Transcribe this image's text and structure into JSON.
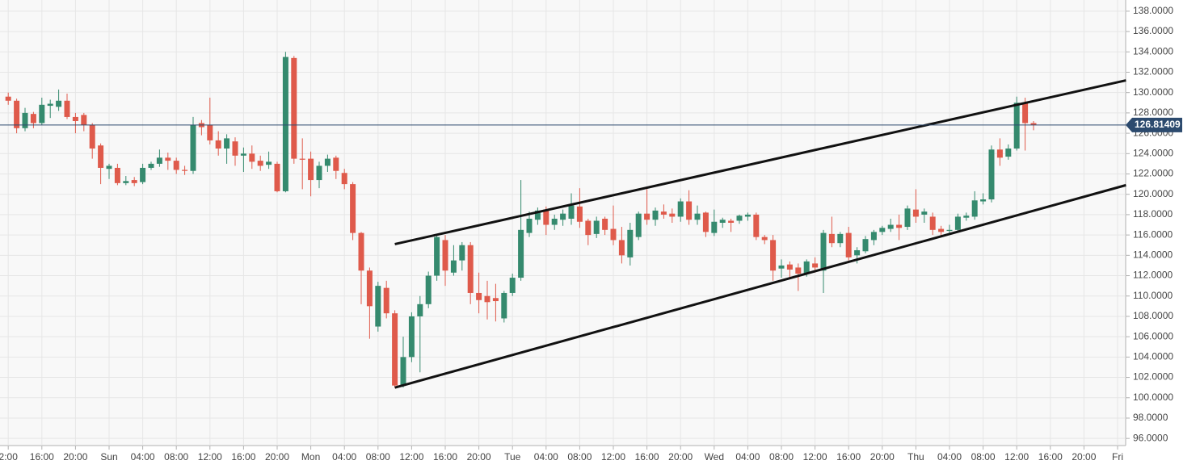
{
  "chart_data": {
    "type": "candlestick",
    "categories": [
      "2:00",
      null,
      null,
      null,
      "16:00",
      null,
      null,
      null,
      "20:00",
      null,
      null,
      null,
      "Sun",
      null,
      null,
      null,
      "04:00",
      null,
      null,
      null,
      "08:00",
      null,
      null,
      null,
      "12:00",
      null,
      null,
      null,
      "16:00",
      null,
      null,
      null,
      "20:00",
      null,
      null,
      null,
      "Mon",
      null,
      null,
      null,
      "04:00",
      null,
      null,
      null,
      "08:00",
      null,
      null,
      null,
      "12:00",
      null,
      null,
      null,
      "16:00",
      null,
      null,
      null,
      "20:00",
      null,
      null,
      null,
      "Tue",
      null,
      null,
      null,
      "04:00",
      null,
      null,
      null,
      "08:00",
      null,
      null,
      null,
      "12:00",
      null,
      null,
      null,
      "16:00",
      null,
      null,
      null,
      "20:00",
      null,
      null,
      null,
      "Wed",
      null,
      null,
      null,
      "04:00",
      null,
      null,
      null,
      "08:00",
      null,
      null,
      null,
      "12:00",
      null,
      null,
      null,
      "16:00",
      null,
      null,
      null,
      "20:00",
      null,
      null,
      null,
      "Thu",
      null,
      null,
      null,
      "04:00",
      null,
      null,
      null,
      "08:00",
      null,
      null,
      null,
      "12:00",
      null,
      null,
      null,
      "16:00",
      null,
      null,
      null,
      "20:00",
      null,
      null,
      null,
      "Fri"
    ],
    "open": [
      129.6,
      129.2,
      126.5,
      127.9,
      127,
      128.7,
      128.6,
      129.2,
      127.6,
      127.8,
      126.8,
      124.8,
      122.5,
      122.6,
      121.1,
      121.4,
      121.2,
      122.6,
      123,
      123.6,
      123.3,
      122.4,
      122.3,
      127,
      126.8,
      125.3,
      124.5,
      125.2,
      123.8,
      124,
      123.3,
      122.9,
      123,
      120.3,
      133.4,
      123.5,
      123.5,
      121.4,
      122.8,
      123.6,
      122.1,
      121,
      116.2,
      112.5,
      107,
      110.8,
      108.3,
      101.2,
      104,
      108,
      109.2,
      112,
      115.5,
      112.3,
      113.5,
      115,
      110.3,
      110,
      109.8,
      107.8,
      110.3,
      111.8,
      116.2,
      117.5,
      118.5,
      117,
      117.5,
      117.6,
      118.8,
      117.4,
      116.1,
      117.6,
      116.6,
      115.5,
      113.8,
      115.8,
      118.1,
      117.5,
      118.3,
      118.1,
      117.8,
      119.3,
      117.5,
      118.2,
      116.2,
      117.2,
      117.4,
      117.4,
      117.8,
      118,
      115.8,
      115.5,
      112.7,
      113.1,
      112.8,
      112.2,
      113.2,
      112.5,
      116.1,
      115.2,
      116.2,
      114,
      114.4,
      115.5,
      116.3,
      116.6,
      117,
      116.8,
      118.5,
      118,
      117.8,
      116.6,
      116.4,
      116.5,
      117.7,
      117.8,
      119.3,
      119.5,
      124.4,
      123.7,
      124.5,
      129,
      127.0,
      null,
      null,
      null,
      null,
      null,
      null,
      null,
      null,
      null,
      null
    ],
    "high": [
      130,
      129.4,
      128.5,
      128.1,
      129.5,
      129.3,
      130.3,
      129.9,
      128,
      128,
      127,
      125,
      123,
      123,
      121.8,
      121.7,
      123,
      123.2,
      124.4,
      124.1,
      123.6,
      122.8,
      127.6,
      127.3,
      129.5,
      126.2,
      125.9,
      125.6,
      124.6,
      124.8,
      123.8,
      124.2,
      123.2,
      134,
      133.6,
      125.5,
      124.2,
      123.2,
      123.9,
      123.8,
      122.5,
      121.2,
      116.3,
      112.8,
      111.4,
      111.5,
      108.6,
      106,
      108.4,
      110,
      112.4,
      116,
      116,
      115,
      115.3,
      115.3,
      112.3,
      111.5,
      111.2,
      110.5,
      112.2,
      121.4,
      118.3,
      118.7,
      118.8,
      118,
      118.5,
      120.1,
      120.6,
      117.6,
      117.8,
      117.8,
      118.9,
      116.8,
      117.2,
      118.3,
      120.5,
      118.7,
      119,
      118.6,
      119.6,
      120.4,
      118.9,
      118.3,
      118.5,
      117.7,
      117.6,
      118,
      118.2,
      118.2,
      116,
      116,
      113.6,
      113.4,
      113.2,
      113.6,
      113.8,
      116.5,
      117.8,
      116.3,
      116.8,
      114.8,
      115.9,
      116.5,
      116.9,
      117.6,
      118,
      118.9,
      120.5,
      118.6,
      118.2,
      116.9,
      117,
      118.1,
      118.2,
      120.3,
      120.1,
      124.8,
      125.5,
      124.9,
      129.6,
      129.5,
      127.2,
      null,
      null,
      null,
      null,
      null,
      null,
      null,
      null,
      null,
      null
    ],
    "low": [
      128.8,
      126.0,
      126.2,
      126.5,
      126.8,
      127.5,
      128.2,
      127.4,
      126.0,
      126.2,
      123.5,
      121.0,
      121.5,
      120.9,
      120.9,
      120.8,
      121.0,
      122.4,
      122.7,
      122.4,
      122.0,
      121.9,
      122.0,
      125.8,
      124.9,
      123.8,
      123.0,
      122.8,
      122.2,
      122.5,
      122.3,
      122.5,
      120.2,
      120.2,
      123.0,
      120.5,
      119.8,
      120.6,
      122.2,
      121.5,
      120.5,
      115.5,
      109.2,
      105.8,
      106.5,
      107.8,
      101.0,
      101.0,
      103.5,
      102.5,
      108.8,
      111.5,
      111.0,
      112.0,
      112.5,
      109.2,
      108.3,
      107.7,
      107.5,
      107.4,
      110,
      111.5,
      115.8,
      117.0,
      116.0,
      116.5,
      116.9,
      117.0,
      116.7,
      115.0,
      115.7,
      116.0,
      115.0,
      113.2,
      113.0,
      115.5,
      117,
      116.9,
      117.6,
      117.2,
      117.3,
      117.0,
      117.0,
      115.8,
      115.9,
      116.7,
      116.3,
      117.1,
      117.4,
      115.5,
      115.1,
      111.5,
      111.8,
      111.7,
      110.5,
      111.9,
      112.3,
      110.3,
      114.8,
      114.8,
      113.5,
      113.2,
      114.2,
      115,
      116,
      116.3,
      115.5,
      116.5,
      117.2,
      117.2,
      116.0,
      115.8,
      116,
      116.3,
      117.4,
      117.5,
      119,
      119.2,
      122.8,
      123.4,
      124.3,
      124.3,
      126.3,
      null,
      null,
      null,
      null,
      null,
      null,
      null,
      null,
      null,
      null
    ],
    "close": [
      129.2,
      126.5,
      128,
      127.0,
      128.8,
      128.9,
      129.2,
      127.6,
      127.2,
      126.8,
      124.5,
      122.6,
      122.8,
      121.1,
      121.3,
      121.1,
      122.6,
      123,
      123.6,
      123.3,
      122.4,
      122.3,
      126.8,
      126.6,
      125.3,
      124.5,
      125.5,
      123.8,
      124.0,
      123.2,
      122.8,
      123.2,
      120.3,
      133.5,
      123.5,
      123.4,
      121.4,
      122.8,
      123.5,
      122.3,
      121.0,
      116.2,
      112.5,
      109,
      111,
      108.3,
      101.2,
      104,
      108,
      109.2,
      112,
      115.8,
      112.5,
      113.5,
      115,
      110.3,
      109.6,
      109.4,
      109.5,
      110.3,
      111.8,
      116.5,
      117.6,
      118.4,
      117.0,
      117.6,
      118.1,
      118.9,
      117.3,
      116.0,
      117.4,
      116.5,
      115.5,
      114,
      116.5,
      118.1,
      117.5,
      118.4,
      118.0,
      117.8,
      119.3,
      117.5,
      118.1,
      116.3,
      117.3,
      117.5,
      117.2,
      117.9,
      118,
      115.8,
      115.5,
      112.5,
      113,
      112.6,
      112.2,
      113.4,
      112.8,
      116.2,
      115.2,
      116.1,
      113.8,
      114.5,
      115.6,
      116.3,
      116.7,
      117,
      116.7,
      118.6,
      117.8,
      118.3,
      116.5,
      116.3,
      116.5,
      117.8,
      117.9,
      119.4,
      119.5,
      124.4,
      123.6,
      124.5,
      129.0,
      127.0,
      126.8,
      null,
      null,
      null,
      null,
      null,
      null,
      null,
      null,
      null,
      null
    ],
    "up_color": "#358a6e",
    "down_color": "#df5a4b",
    "ylim": [
      95.3,
      139.1
    ],
    "yticks": [
      {
        "value": 96,
        "label": "96.0000"
      },
      {
        "value": 98,
        "label": "98.0000"
      },
      {
        "value": 100,
        "label": "100.0000"
      },
      {
        "value": 102,
        "label": "102.0000"
      },
      {
        "value": 104,
        "label": "104.0000"
      },
      {
        "value": 106,
        "label": "106.0000"
      },
      {
        "value": 108,
        "label": "108.0000"
      },
      {
        "value": 110,
        "label": "110.0000"
      },
      {
        "value": 112,
        "label": "112.0000"
      },
      {
        "value": 114,
        "label": "114.0000"
      },
      {
        "value": 116,
        "label": "116.0000"
      },
      {
        "value": 118,
        "label": "118.0000"
      },
      {
        "value": 120,
        "label": "120.0000"
      },
      {
        "value": 122,
        "label": "122.0000"
      },
      {
        "value": 124,
        "label": "124.0000"
      },
      {
        "value": 126,
        "label": "126.0000"
      },
      {
        "value": 128,
        "label": "128.0000"
      },
      {
        "value": 130,
        "label": "130.0000"
      },
      {
        "value": 132,
        "label": "132.0000"
      },
      {
        "value": 134,
        "label": "134.0000"
      },
      {
        "value": 136,
        "label": "136.0000"
      },
      {
        "value": 138,
        "label": "138.0000"
      }
    ],
    "grid": true,
    "last_price": 126.81409,
    "last_price_color": "#2c4a6e",
    "trendlines": [
      {
        "x": [
          46,
          133
        ],
        "y": [
          115.1,
          131.2
        ]
      },
      {
        "x": [
          46,
          133
        ],
        "y": [
          101.0,
          120.9
        ]
      }
    ]
  }
}
